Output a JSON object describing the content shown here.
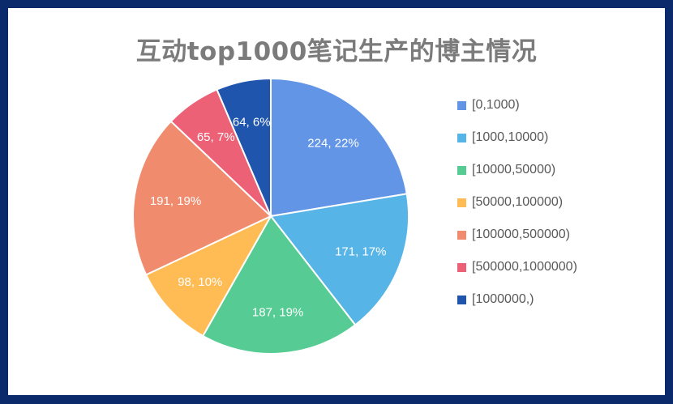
{
  "chart_data": {
    "type": "pie",
    "title": "互动top1000笔记生产的博主情况",
    "categories": [
      "[0,1000)",
      "[1000,10000)",
      "[10000,50000)",
      "[50000,100000)",
      "[100000,500000)",
      "[500000,1000000)",
      "[1000000,)"
    ],
    "values": [
      224,
      171,
      187,
      98,
      191,
      65,
      64
    ],
    "labels": [
      "224, 22%",
      "171, 17%",
      "187, 19%",
      "98, 10%",
      "191, 19%",
      "65, 7%",
      "64, 6%"
    ],
    "colors": [
      "#6395e7",
      "#57b4e6",
      "#56cc94",
      "#ffbb54",
      "#f08b6e",
      "#ed6177",
      "#1f55ad"
    ],
    "legend_position": "right"
  }
}
